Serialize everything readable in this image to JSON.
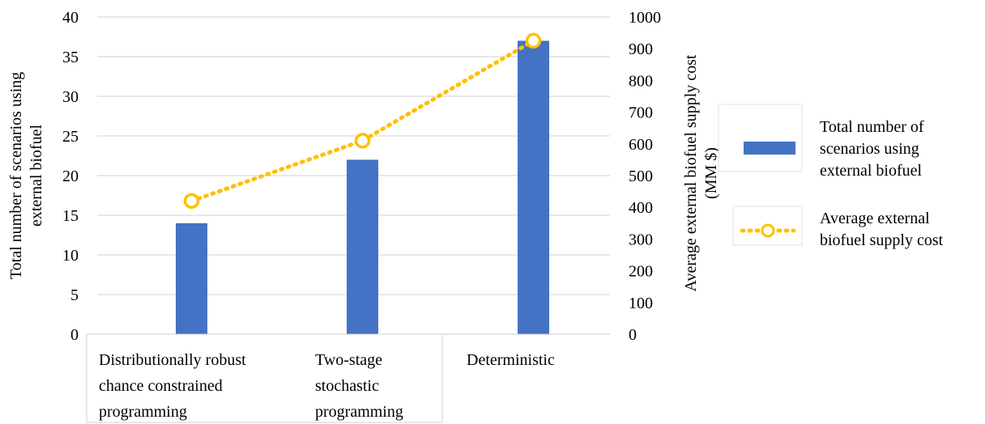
{
  "chart_data": {
    "type": "bar",
    "categories": [
      [
        "Distributionally robust",
        "chance constrained",
        "programming"
      ],
      [
        "Two-stage",
        "stochastic",
        "programming"
      ],
      [
        "Deterministic"
      ]
    ],
    "series": [
      {
        "name": [
          "Total number of",
          "scenarios using",
          "external biofuel"
        ],
        "type": "bar",
        "axis": "left",
        "color": "#4472C4",
        "values": [
          14,
          22,
          37
        ]
      },
      {
        "name": [
          "Average external",
          "biofuel supply cost"
        ],
        "type": "line",
        "style": "dotted-with-circle-markers",
        "axis": "right",
        "color": "#FFC000",
        "values": [
          420,
          610,
          925
        ]
      }
    ],
    "ylabel_left": [
      "Total number of scenarios using",
      "external biofuel"
    ],
    "ylabel_right": [
      "Average external biofuel supply cost",
      "(MM $)"
    ],
    "ylim_left": [
      0,
      40
    ],
    "yticks_left": [
      "0",
      "5",
      "10",
      "15",
      "20",
      "25",
      "30",
      "35",
      "40"
    ],
    "ylim_right": [
      0,
      1000
    ],
    "yticks_right": [
      "0",
      "100",
      "200",
      "300",
      "400",
      "500",
      "600",
      "700",
      "800",
      "900",
      "1000"
    ],
    "grid": "horizontal",
    "legend_position": "right"
  }
}
